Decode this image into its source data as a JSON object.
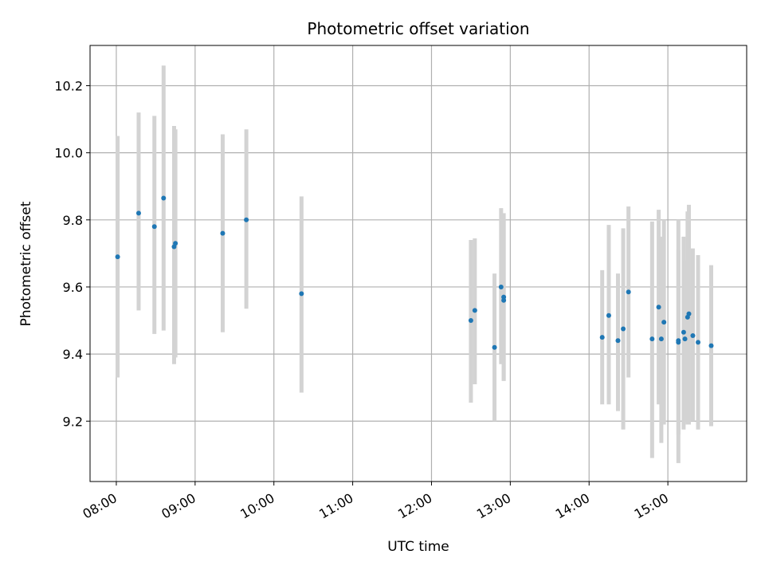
{
  "chart_data": {
    "type": "scatter",
    "title": "Photometric offset variation",
    "xlabel": "UTC time",
    "ylabel": "Photometric offset",
    "x_unit": "UTC time (HH:MM)",
    "xlim": [
      "07:40",
      "16:00"
    ],
    "ylim": [
      9.02,
      10.32
    ],
    "x_ticks": [
      "08:00",
      "09:00",
      "10:00",
      "11:00",
      "12:00",
      "13:00",
      "14:00",
      "15:00"
    ],
    "y_ticks": [
      "9.2",
      "9.4",
      "9.6",
      "9.8",
      "10.0",
      "10.2"
    ],
    "grid": true,
    "legend": "none",
    "colors": {
      "marker": "#1f77b4",
      "errorbar": "#d3d3d3",
      "grid": "#b0b0b0"
    },
    "points": [
      {
        "x": "08:01",
        "y": 9.69,
        "ylow": 9.33,
        "yhigh": 10.05
      },
      {
        "x": "08:17",
        "y": 9.82,
        "ylow": 9.53,
        "yhigh": 10.12
      },
      {
        "x": "08:29",
        "y": 9.78,
        "ylow": 9.46,
        "yhigh": 10.11
      },
      {
        "x": "08:36",
        "y": 9.865,
        "ylow": 9.47,
        "yhigh": 10.26
      },
      {
        "x": "08:44",
        "y": 9.72,
        "ylow": 9.37,
        "yhigh": 10.08
      },
      {
        "x": "08:45",
        "y": 9.73,
        "ylow": 9.39,
        "yhigh": 10.07
      },
      {
        "x": "09:21",
        "y": 9.76,
        "ylow": 9.465,
        "yhigh": 10.055
      },
      {
        "x": "09:39",
        "y": 9.8,
        "ylow": 9.535,
        "yhigh": 10.07
      },
      {
        "x": "10:21",
        "y": 9.58,
        "ylow": 9.285,
        "yhigh": 9.87
      },
      {
        "x": "12:30",
        "y": 9.5,
        "ylow": 9.255,
        "yhigh": 9.74
      },
      {
        "x": "12:33",
        "y": 9.53,
        "ylow": 9.31,
        "yhigh": 9.745
      },
      {
        "x": "12:48",
        "y": 9.42,
        "ylow": 9.2,
        "yhigh": 9.64
      },
      {
        "x": "12:53",
        "y": 9.6,
        "ylow": 9.37,
        "yhigh": 9.835
      },
      {
        "x": "12:55",
        "y": 9.57,
        "ylow": 9.32,
        "yhigh": 9.82
      },
      {
        "x": "12:55",
        "y": 9.56,
        "ylow": 9.32,
        "yhigh": 9.8
      },
      {
        "x": "14:10",
        "y": 9.45,
        "ylow": 9.25,
        "yhigh": 9.65
      },
      {
        "x": "14:15",
        "y": 9.515,
        "ylow": 9.25,
        "yhigh": 9.785
      },
      {
        "x": "14:22",
        "y": 9.44,
        "ylow": 9.23,
        "yhigh": 9.64
      },
      {
        "x": "14:26",
        "y": 9.475,
        "ylow": 9.175,
        "yhigh": 9.775
      },
      {
        "x": "14:30",
        "y": 9.585,
        "ylow": 9.33,
        "yhigh": 9.84
      },
      {
        "x": "14:48",
        "y": 9.445,
        "ylow": 9.09,
        "yhigh": 9.795
      },
      {
        "x": "14:53",
        "y": 9.54,
        "ylow": 9.25,
        "yhigh": 9.83
      },
      {
        "x": "14:55",
        "y": 9.445,
        "ylow": 9.135,
        "yhigh": 9.75
      },
      {
        "x": "14:57",
        "y": 9.495,
        "ylow": 9.19,
        "yhigh": 9.8
      },
      {
        "x": "15:08",
        "y": 9.44,
        "ylow": 9.075,
        "yhigh": 9.8
      },
      {
        "x": "15:08",
        "y": 9.435,
        "ylow": 9.16,
        "yhigh": 9.71
      },
      {
        "x": "15:12",
        "y": 9.465,
        "ylow": 9.175,
        "yhigh": 9.75
      },
      {
        "x": "15:13",
        "y": 9.445,
        "ylow": 9.2,
        "yhigh": 9.68
      },
      {
        "x": "15:15",
        "y": 9.51,
        "ylow": 9.19,
        "yhigh": 9.825
      },
      {
        "x": "15:16",
        "y": 9.52,
        "ylow": 9.19,
        "yhigh": 9.845
      },
      {
        "x": "15:19",
        "y": 9.455,
        "ylow": 9.2,
        "yhigh": 9.715
      },
      {
        "x": "15:23",
        "y": 9.435,
        "ylow": 9.175,
        "yhigh": 9.695
      },
      {
        "x": "15:33",
        "y": 9.425,
        "ylow": 9.185,
        "yhigh": 9.665
      }
    ]
  }
}
